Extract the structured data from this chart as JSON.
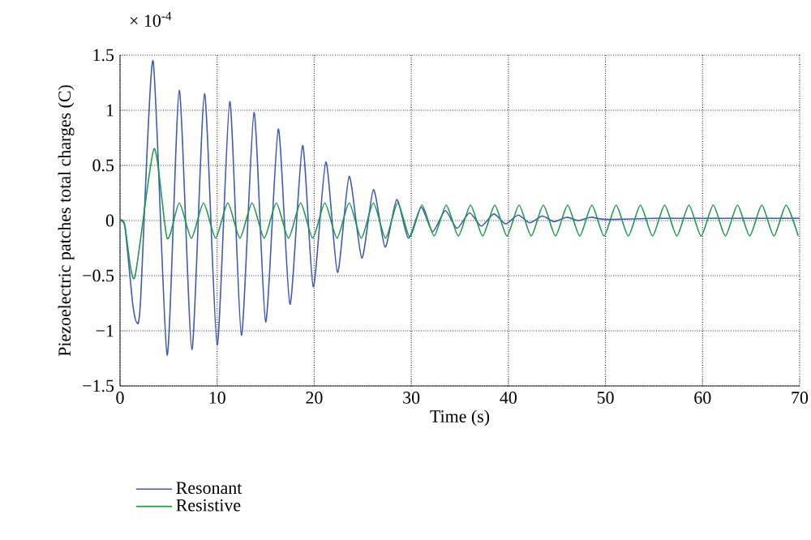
{
  "chart_data": {
    "type": "line",
    "xlabel": "Time (s)",
    "ylabel": "Piezoelectric patches total charges (C)",
    "annotations": [
      "× 10$^{-4}$"
    ],
    "xlim": [
      0,
      70
    ],
    "ylim": [
      -1.5,
      1.5
    ],
    "xticks": [
      {
        "value": 0,
        "label": "0"
      },
      {
        "value": 10,
        "label": "10"
      },
      {
        "value": 20,
        "label": "20"
      },
      {
        "value": 30,
        "label": "30"
      },
      {
        "value": 40,
        "label": "40"
      },
      {
        "value": 50,
        "label": "50"
      },
      {
        "value": 60,
        "label": "60"
      },
      {
        "value": 70,
        "label": "70"
      }
    ],
    "yticks": [
      {
        "value": -1.5,
        "label": "−1.5"
      },
      {
        "value": -1,
        "label": "−1"
      },
      {
        "value": -0.5,
        "label": "−0.5"
      },
      {
        "value": 0,
        "label": "0"
      },
      {
        "value": 0.5,
        "label": "0.5"
      },
      {
        "value": 1,
        "label": "1"
      },
      {
        "value": 1.5,
        "label": "1.5"
      }
    ],
    "grid": true,
    "legend": "bottom",
    "series": [
      {
        "name": "Resonant",
        "color": "#3f5bb5",
        "x": [
          0,
          0.5,
          1.3,
          1.7,
          2.1,
          3.4,
          4.85,
          6.1,
          7.4,
          8.7,
          10,
          11.3,
          12.5,
          13.8,
          15,
          16.3,
          17.5,
          18.8,
          19.9,
          21.2,
          22.4,
          23.6,
          24.9,
          26.1,
          27.3,
          28.5,
          29.7,
          31,
          32.2,
          33.5,
          34.7,
          36,
          37.2,
          38.5,
          39.7,
          41,
          42.2,
          43.5,
          44.7,
          46,
          47.2,
          48.5,
          50,
          55,
          60,
          65,
          70
        ],
        "values": [
          0,
          -0.05,
          -0.75,
          -0.92,
          -0.75,
          1.45,
          -1.22,
          1.18,
          -1.17,
          1.15,
          -1.13,
          1.08,
          -1.04,
          0.98,
          -0.92,
          0.83,
          -0.76,
          0.68,
          -0.6,
          0.53,
          -0.47,
          0.4,
          -0.34,
          0.28,
          -0.24,
          0.19,
          -0.16,
          0.12,
          -0.1,
          0.09,
          -0.07,
          0.07,
          -0.05,
          0.06,
          -0.03,
          0.05,
          -0.02,
          0.04,
          -0.01,
          0.03,
          0,
          0.03,
          0.01,
          0.02,
          0.02,
          0.02,
          0.02
        ]
      },
      {
        "name": "Resistive",
        "color": "#1e9a4a",
        "x": [
          0,
          0.5,
          1.5,
          3.5,
          4.85,
          6.1,
          7.35,
          8.6,
          9.85,
          11.1,
          12.35,
          13.6,
          14.85,
          16.1,
          17.35,
          18.6,
          19.85,
          21.1,
          22.35,
          23.6,
          24.85,
          26.1,
          27.35,
          28.6,
          29.85,
          31.1,
          32.35,
          33.6,
          34.85,
          36.1,
          37.35,
          38.6,
          39.85,
          41.1,
          42.35,
          43.6,
          44.85,
          46.1,
          47.35,
          48.6,
          49.85,
          51.1,
          52.35,
          53.6,
          54.85,
          56.1,
          57.35,
          58.6,
          59.85,
          61.1,
          62.35,
          63.6,
          64.85,
          66.1,
          67.35,
          68.6,
          69.85
        ],
        "values": [
          0,
          -0.05,
          -0.52,
          0.65,
          -0.16,
          0.16,
          -0.16,
          0.16,
          -0.16,
          0.16,
          -0.16,
          0.16,
          -0.16,
          0.16,
          -0.16,
          0.16,
          -0.16,
          0.16,
          -0.16,
          0.16,
          -0.16,
          0.16,
          -0.16,
          0.16,
          -0.15,
          0.14,
          -0.14,
          0.14,
          -0.14,
          0.14,
          -0.14,
          0.14,
          -0.14,
          0.14,
          -0.14,
          0.14,
          -0.14,
          0.14,
          -0.14,
          0.14,
          -0.14,
          0.14,
          -0.14,
          0.14,
          -0.14,
          0.14,
          -0.14,
          0.14,
          -0.14,
          0.14,
          -0.14,
          0.14,
          -0.14,
          0.14,
          -0.14,
          0.14,
          -0.14
        ]
      }
    ]
  }
}
